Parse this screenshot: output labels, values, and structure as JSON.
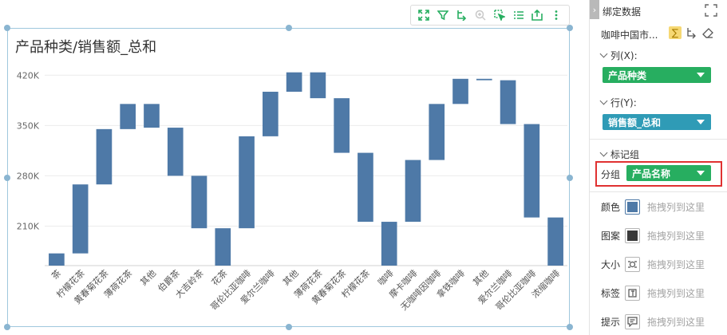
{
  "toolbar": {
    "buttons": [
      "fullscreen-icon",
      "filter-icon",
      "drill-icon",
      "zoom-icon",
      "select-icon",
      "list-icon",
      "export-icon",
      "more-icon"
    ]
  },
  "chart_title": "产品种类/销售额_总和",
  "chart_data": {
    "type": "waterfall",
    "title": "产品种类/销售额_总和",
    "y_ticks": [
      "210K",
      "280K",
      "350K",
      "420K"
    ],
    "y_tick_values": [
      210000,
      280000,
      350000,
      420000
    ],
    "ylim": [
      155000,
      427000
    ],
    "categories": [
      "茶",
      "柠檬花茶",
      "黄春菊花茶",
      "薄荷花茶",
      "其他",
      "伯爵茶",
      "大吉岭茶",
      "花茶",
      "哥伦比亚咖啡",
      "爱尔兰咖啡",
      "其他",
      "薄荷花茶",
      "黄春菊花茶",
      "柠檬花茶",
      "咖啡",
      "摩卡咖啡",
      "无咖啡因咖啡",
      "拿铁咖啡",
      "其他",
      "爱尔兰咖啡",
      "哥伦比亚咖啡",
      "浓缩咖啡"
    ],
    "bars": [
      {
        "low": 155000,
        "high": 172000
      },
      {
        "low": 172000,
        "high": 268000
      },
      {
        "low": 268000,
        "high": 345000
      },
      {
        "low": 345000,
        "high": 380000
      },
      {
        "low": 347000,
        "high": 380000
      },
      {
        "low": 280000,
        "high": 347000
      },
      {
        "low": 207000,
        "high": 280000
      },
      {
        "low": 155000,
        "high": 207000
      },
      {
        "low": 207000,
        "high": 335000
      },
      {
        "low": 335000,
        "high": 397000
      },
      {
        "low": 397000,
        "high": 424000
      },
      {
        "low": 388000,
        "high": 424000
      },
      {
        "low": 312000,
        "high": 388000
      },
      {
        "low": 216000,
        "high": 312000
      },
      {
        "low": 155000,
        "high": 216000
      },
      {
        "low": 216000,
        "high": 302000
      },
      {
        "low": 302000,
        "high": 380000
      },
      {
        "low": 380000,
        "high": 415000
      },
      {
        "low": 413000,
        "high": 415000
      },
      {
        "low": 352000,
        "high": 413000
      },
      {
        "low": 222000,
        "high": 352000
      },
      {
        "low": 155000,
        "high": 222000
      }
    ],
    "bar_color": "#4e79a7",
    "grid": true
  },
  "panel": {
    "title": "绑定数据",
    "dataset_name": "咖啡中国市...",
    "columns_label": "列(X):",
    "columns_field": "产品种类",
    "rows_label": "行(Y):",
    "rows_field": "销售额_总和",
    "marks_label": "标记组",
    "group_label": "分组",
    "group_field": "产品名称",
    "marks": [
      {
        "label": "颜色",
        "icon": "color-swatch-icon",
        "hint": "拖拽列到这里"
      },
      {
        "label": "图案",
        "icon": "pattern-icon",
        "hint": "拖拽列到这里"
      },
      {
        "label": "大小",
        "icon": "size-icon",
        "hint": "拖拽列到这里"
      },
      {
        "label": "标签",
        "icon": "label-icon",
        "hint": "拖拽列到这里"
      },
      {
        "label": "提示",
        "icon": "tooltip-icon",
        "hint": "拖拽列到这里"
      }
    ],
    "colors": {
      "green": "#27ae60",
      "teal": "#2f9bb6",
      "highlight": "#e03131",
      "swatch": "#4e79a7"
    }
  }
}
